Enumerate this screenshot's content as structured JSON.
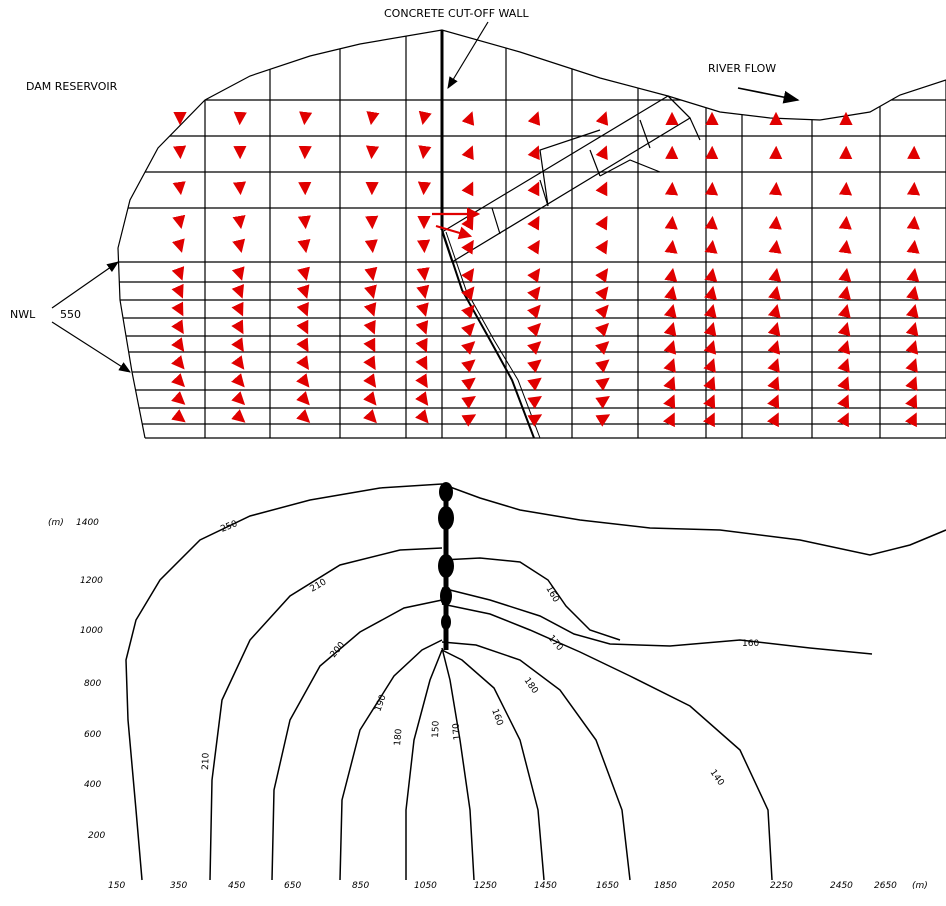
{
  "labels": {
    "cutoff_wall": "CONCRETE CUT-OFF WALL",
    "reservoir": "DAM RESERVOIR",
    "river_flow": "RIVER FLOW",
    "nwl": "NWL",
    "nwl_value": "550",
    "y_unit": "(m)",
    "x_unit": "(m)"
  },
  "y_ticks": [
    "1400",
    "1200",
    "1000",
    "800",
    "600",
    "400",
    "200"
  ],
  "x_ticks": [
    "150",
    "350",
    "450",
    "650",
    "850",
    "1050",
    "1250",
    "1450",
    "1650",
    "1850",
    "2050",
    "2250",
    "2450",
    "2650"
  ],
  "contour_labels": [
    "250",
    "210",
    "200",
    "190",
    "180",
    "170",
    "210",
    "160",
    "170",
    "180",
    "160",
    "160",
    "150",
    "140"
  ],
  "colors": {
    "flow_vectors": "#e00000",
    "lines": "#000000"
  }
}
